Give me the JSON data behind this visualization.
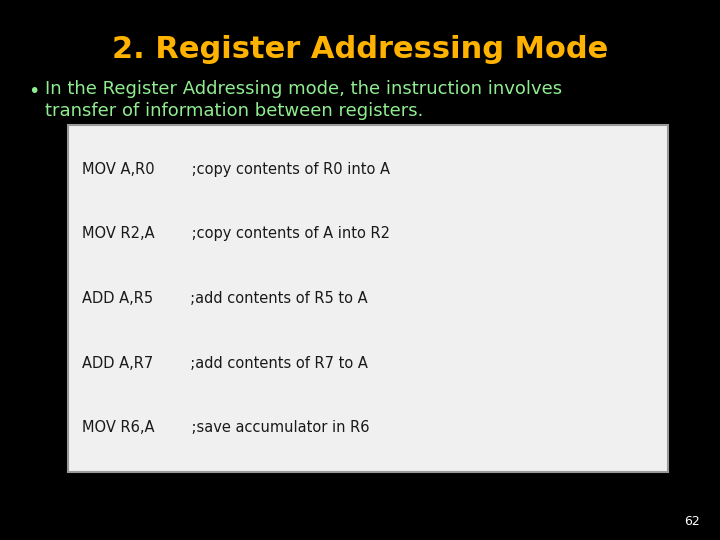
{
  "title": "2. Register Addressing Mode",
  "title_color": "#FFB300",
  "title_fontsize": 22,
  "bullet_text_line1": "In the Register Addressing mode, the instruction involves",
  "bullet_text_line2": "transfer of information between registers.",
  "bullet_color": "#90EE90",
  "bullet_fontsize": 13,
  "background_color": "#000000",
  "code_lines": [
    "MOV A,R0        ;copy contents of R0 into A",
    "MOV R2,A        ;copy contents of A into R2",
    "ADD A,R5        ;add contents of R5 to A",
    "ADD A,R7        ;add contents of R7 to A",
    "MOV R6,A        ;save accumulator in R6"
  ],
  "code_bg": "#f0f0f0",
  "code_border": "#999999",
  "code_text_color": "#1a1a1a",
  "code_fontsize": 10.5,
  "page_number": "62",
  "page_number_color": "#ffffff",
  "page_number_fontsize": 9
}
